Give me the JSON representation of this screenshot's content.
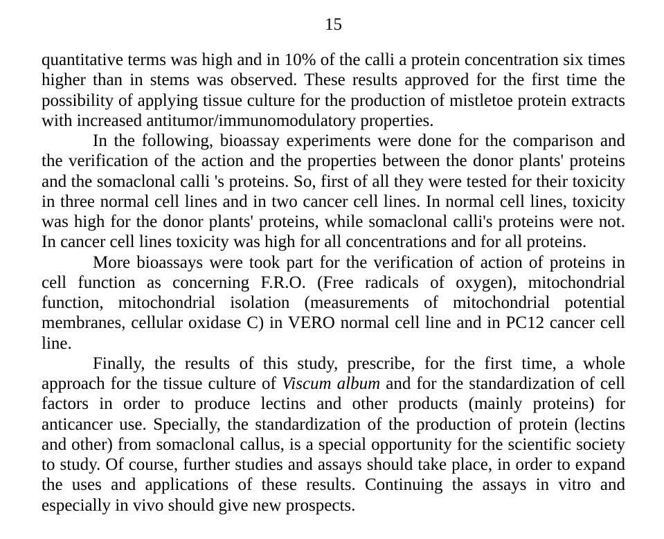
{
  "page": {
    "number": "15",
    "font_family": "Times New Roman",
    "font_size_pt": 25,
    "text_color": "#000000",
    "background_color": "#ffffff"
  },
  "paragraphs": {
    "p1": "quantitative terms was high and in 10% of the calli a protein concentration six times higher than in stems was observed. These results approved for the first time the possibility of applying tissue culture for the production of mistletoe protein extracts with increased antitumor/immunomodulatory properties.",
    "p2": "In the following, bioassay experiments were done for the comparison and the verification of the action and the properties between the donor plants' proteins and the somaclonal calli 's proteins. So, first of all they were tested for their toxicity in three normal cell lines and in two cancer cell lines. In normal cell lines, toxicity was high for the donor plants' proteins, while somaclonal calli's proteins were not. In cancer cell lines toxicity was high for all concentrations and for all proteins.",
    "p3": "More bioassays were took part for the verification of action of proteins in cell function as concerning F.R.O. (Free radicals of oxygen), mitochondrial function, mitochondrial isolation (measurements of mitochondrial potential membranes, cellular oxidase C) in VERO normal cell line and in PC12 cancer cell line.",
    "p4_part1": "Finally, the results of this study, prescribe, for the first time, a whole approach for the tissue culture of ",
    "p4_italic": "Viscum album",
    "p4_part2": " and for the standardization of cell factors in order to produce lectins and other products (mainly proteins) for anticancer use. Specially, the standardization of the production of protein (lectins and other) from somaclonal callus, is a special opportunity for the scientific society to study. Of course, further studies and assays should take place, in order to expand the uses and applications of these results. Continuing the assays in vitro and especially in vivo should give new prospects."
  }
}
